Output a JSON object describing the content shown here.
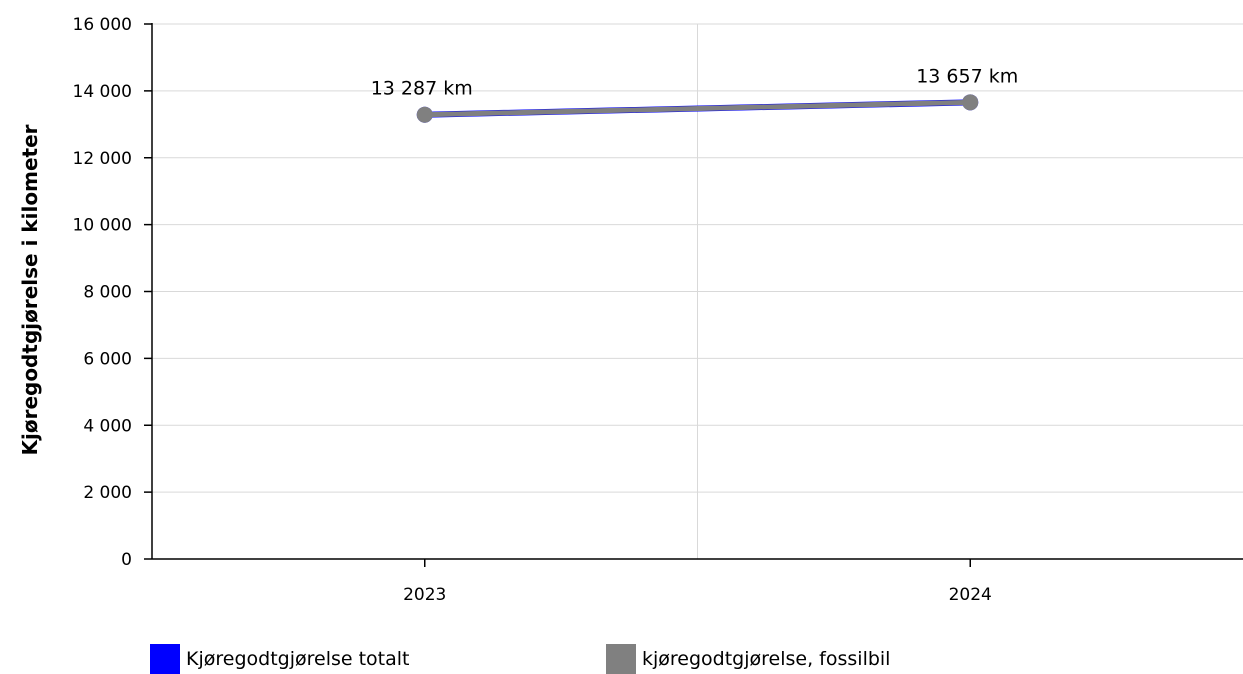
{
  "chart_data": {
    "type": "line",
    "x": [
      "2023",
      "2024"
    ],
    "series": [
      {
        "name": "Kjøregodtgjørelse totalt",
        "values": [
          13287,
          13657
        ],
        "color": "#0000ff"
      },
      {
        "name": "kjøregodtgjørelse, fossilbil",
        "values": [
          13287,
          13657
        ],
        "color": "#808080"
      }
    ],
    "data_labels": [
      "13 287 km",
      "13 657 km"
    ],
    "ylabel": "Kjøregodtgjørelse i kilometer",
    "xlabel": "",
    "ylim": [
      0,
      16000
    ],
    "yticks": [
      0,
      2000,
      4000,
      6000,
      8000,
      10000,
      12000,
      14000,
      16000
    ],
    "ytick_labels": [
      "0",
      "2 000",
      "4 000",
      "6 000",
      "8 000",
      "10 000",
      "12 000",
      "14 000",
      "16 000"
    ],
    "grid": true,
    "legend_position": "bottom"
  }
}
